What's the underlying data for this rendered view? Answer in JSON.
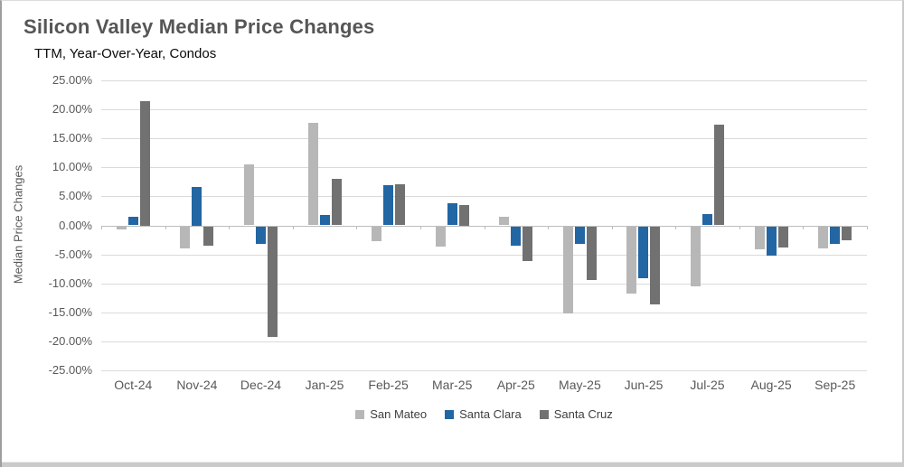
{
  "page": {
    "title": "Silicon Valley Median Price Changes",
    "subtitle": "TTM, Year-Over-Year, Condos"
  },
  "chart_data": {
    "type": "bar",
    "title": "Silicon Valley Median Price Changes",
    "subtitle": "TTM, Year-Over-Year, Condos",
    "xlabel": "",
    "ylabel": "Median Price Changes",
    "ylim": [
      -25,
      25
    ],
    "ytick_step": 5,
    "ytick_format": "0.00%",
    "grid": true,
    "legend_position": "bottom",
    "units": "percent",
    "categories": [
      "Oct-24",
      "Nov-24",
      "Dec-24",
      "Jan-25",
      "Feb-25",
      "Mar-25",
      "Apr-25",
      "May-25",
      "Jun-25",
      "Jul-25",
      "Aug-25",
      "Sep-25"
    ],
    "series": [
      {
        "name": "San Mateo",
        "color": "#B7B7B7",
        "values": [
          -0.5,
          -3.8,
          10.5,
          17.7,
          -2.6,
          -3.5,
          1.5,
          -15.0,
          -11.6,
          -10.3,
          -4.0,
          -3.8
        ]
      },
      {
        "name": "Santa Clara",
        "color": "#2266A3",
        "values": [
          1.5,
          6.7,
          -3.0,
          1.8,
          7.0,
          3.8,
          -3.4,
          -3.0,
          -9.0,
          2.0,
          -5.1,
          -3.0
        ]
      },
      {
        "name": "Santa Cruz",
        "color": "#717171",
        "values": [
          21.5,
          -3.3,
          -19.0,
          8.0,
          7.1,
          3.5,
          -6.0,
          -9.3,
          -13.4,
          17.3,
          -3.6,
          -2.4
        ]
      }
    ]
  },
  "colors": {
    "grid": "#dadada",
    "axis": "#bdbdbd",
    "title_text": "#565656",
    "tick_text": "#595959"
  }
}
